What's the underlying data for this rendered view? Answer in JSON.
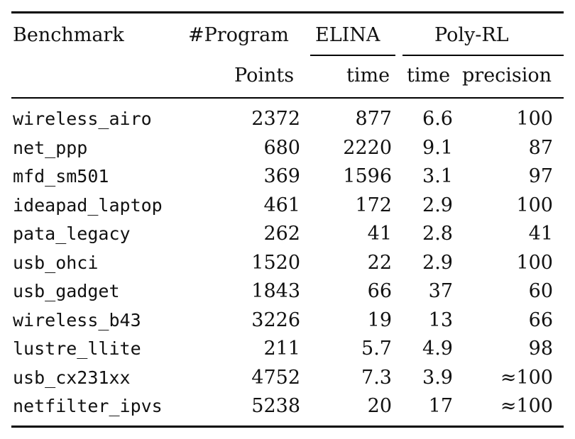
{
  "headers": {
    "benchmark": "Benchmark",
    "program": "#Program",
    "elina": "ELINA",
    "polyrl": "Poly-RL",
    "points": "Points",
    "elina_time": "time",
    "polyrl_time": "time",
    "precision": "precision"
  },
  "rows": [
    {
      "name": "wireless_airo",
      "points": "2372",
      "elina_time": "877",
      "polyrl_time": "6.6",
      "precision": "100"
    },
    {
      "name": "net_ppp",
      "points": "680",
      "elina_time": "2220",
      "polyrl_time": "9.1",
      "precision": "87"
    },
    {
      "name": "mfd_sm501",
      "points": "369",
      "elina_time": "1596",
      "polyrl_time": "3.1",
      "precision": "97"
    },
    {
      "name": "ideapad_laptop",
      "points": "461",
      "elina_time": "172",
      "polyrl_time": "2.9",
      "precision": "100"
    },
    {
      "name": "pata_legacy",
      "points": "262",
      "elina_time": "41",
      "polyrl_time": "2.8",
      "precision": "41"
    },
    {
      "name": "usb_ohci",
      "points": "1520",
      "elina_time": "22",
      "polyrl_time": "2.9",
      "precision": "100"
    },
    {
      "name": "usb_gadget",
      "points": "1843",
      "elina_time": "66",
      "polyrl_time": "37",
      "precision": "60"
    },
    {
      "name": "wireless_b43",
      "points": "3226",
      "elina_time": "19",
      "polyrl_time": "13",
      "precision": "66"
    },
    {
      "name": "lustre_llite",
      "points": "211",
      "elina_time": "5.7",
      "polyrl_time": "4.9",
      "precision": "98"
    },
    {
      "name": "usb_cx231xx",
      "points": "4752",
      "elina_time": "7.3",
      "polyrl_time": "3.9",
      "precision": "≈100"
    },
    {
      "name": "netfilter_ipvs",
      "points": "5238",
      "elina_time": "20",
      "polyrl_time": "17",
      "precision": "≈100"
    }
  ]
}
